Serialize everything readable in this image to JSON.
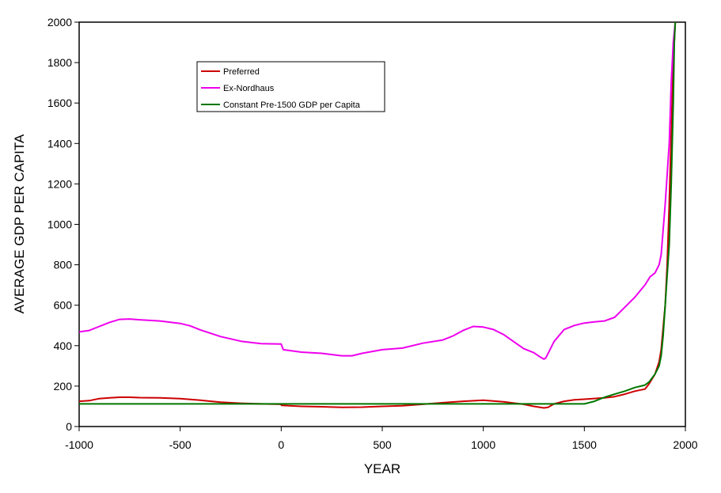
{
  "chart_data": {
    "type": "line",
    "title": "",
    "xlabel": "YEAR",
    "ylabel": "AVERAGE GDP PER CAPITA",
    "xlim": [
      -1000,
      2000
    ],
    "ylim": [
      0,
      2000
    ],
    "xticks": [
      -1000,
      -500,
      0,
      500,
      1000,
      1500,
      2000
    ],
    "yticks": [
      0,
      200,
      400,
      600,
      800,
      1000,
      1200,
      1400,
      1600,
      1800,
      2000
    ],
    "grid": false,
    "legend_position": "top-left inside plot",
    "series": [
      {
        "name": "Preferred",
        "color": "#cc0000",
        "points": [
          [
            -1000,
            125
          ],
          [
            -950,
            128
          ],
          [
            -900,
            138
          ],
          [
            -850,
            142
          ],
          [
            -800,
            145
          ],
          [
            -750,
            145
          ],
          [
            -700,
            143
          ],
          [
            -600,
            142
          ],
          [
            -500,
            138
          ],
          [
            -400,
            130
          ],
          [
            -300,
            120
          ],
          [
            -200,
            115
          ],
          [
            -100,
            112
          ],
          [
            0,
            110
          ],
          [
            1,
            105
          ],
          [
            100,
            100
          ],
          [
            200,
            98
          ],
          [
            300,
            95
          ],
          [
            400,
            96
          ],
          [
            500,
            100
          ],
          [
            600,
            103
          ],
          [
            700,
            110
          ],
          [
            800,
            118
          ],
          [
            900,
            125
          ],
          [
            1000,
            130
          ],
          [
            1100,
            122
          ],
          [
            1200,
            110
          ],
          [
            1250,
            100
          ],
          [
            1300,
            92
          ],
          [
            1320,
            95
          ],
          [
            1350,
            112
          ],
          [
            1400,
            125
          ],
          [
            1450,
            132
          ],
          [
            1500,
            135
          ],
          [
            1600,
            142
          ],
          [
            1650,
            148
          ],
          [
            1700,
            160
          ],
          [
            1750,
            175
          ],
          [
            1800,
            185
          ],
          [
            1820,
            210
          ],
          [
            1850,
            260
          ],
          [
            1870,
            320
          ],
          [
            1880,
            380
          ],
          [
            1900,
            600
          ],
          [
            1910,
            800
          ],
          [
            1920,
            1100
          ],
          [
            1930,
            1450
          ],
          [
            1940,
            1800
          ],
          [
            1950,
            2000
          ]
        ]
      },
      {
        "name": "Ex-Nordhaus",
        "color": "#ee00ee",
        "points": [
          [
            -1000,
            468
          ],
          [
            -950,
            475
          ],
          [
            -900,
            495
          ],
          [
            -850,
            515
          ],
          [
            -800,
            530
          ],
          [
            -750,
            532
          ],
          [
            -700,
            528
          ],
          [
            -600,
            522
          ],
          [
            -500,
            510
          ],
          [
            -450,
            498
          ],
          [
            -400,
            478
          ],
          [
            -300,
            445
          ],
          [
            -200,
            422
          ],
          [
            -100,
            410
          ],
          [
            0,
            408
          ],
          [
            10,
            380
          ],
          [
            100,
            368
          ],
          [
            200,
            362
          ],
          [
            300,
            350
          ],
          [
            350,
            350
          ],
          [
            400,
            362
          ],
          [
            500,
            380
          ],
          [
            600,
            388
          ],
          [
            700,
            412
          ],
          [
            800,
            428
          ],
          [
            850,
            448
          ],
          [
            900,
            475
          ],
          [
            950,
            495
          ],
          [
            1000,
            492
          ],
          [
            1050,
            480
          ],
          [
            1100,
            455
          ],
          [
            1150,
            420
          ],
          [
            1200,
            385
          ],
          [
            1250,
            365
          ],
          [
            1280,
            345
          ],
          [
            1300,
            333
          ],
          [
            1310,
            340
          ],
          [
            1330,
            380
          ],
          [
            1350,
            420
          ],
          [
            1400,
            480
          ],
          [
            1450,
            500
          ],
          [
            1500,
            512
          ],
          [
            1550,
            518
          ],
          [
            1600,
            522
          ],
          [
            1650,
            540
          ],
          [
            1700,
            590
          ],
          [
            1750,
            640
          ],
          [
            1800,
            700
          ],
          [
            1825,
            740
          ],
          [
            1850,
            760
          ],
          [
            1870,
            800
          ],
          [
            1880,
            850
          ],
          [
            1900,
            1100
          ],
          [
            1920,
            1400
          ],
          [
            1930,
            1700
          ],
          [
            1940,
            1900
          ],
          [
            1950,
            2000
          ]
        ]
      },
      {
        "name": "Constant Pre-1500 GDP per Capita",
        "color": "#007700",
        "points": [
          [
            -1000,
            112
          ],
          [
            -500,
            112
          ],
          [
            0,
            112
          ],
          [
            500,
            112
          ],
          [
            1000,
            112
          ],
          [
            1500,
            112
          ],
          [
            1550,
            125
          ],
          [
            1600,
            145
          ],
          [
            1650,
            160
          ],
          [
            1700,
            175
          ],
          [
            1750,
            193
          ],
          [
            1780,
            200
          ],
          [
            1800,
            205
          ],
          [
            1820,
            220
          ],
          [
            1850,
            260
          ],
          [
            1870,
            300
          ],
          [
            1880,
            350
          ],
          [
            1890,
            450
          ],
          [
            1900,
            600
          ],
          [
            1910,
            750
          ],
          [
            1920,
            900
          ],
          [
            1930,
            1200
          ],
          [
            1940,
            1600
          ],
          [
            1945,
            1900
          ],
          [
            1950,
            2000
          ]
        ]
      }
    ]
  }
}
